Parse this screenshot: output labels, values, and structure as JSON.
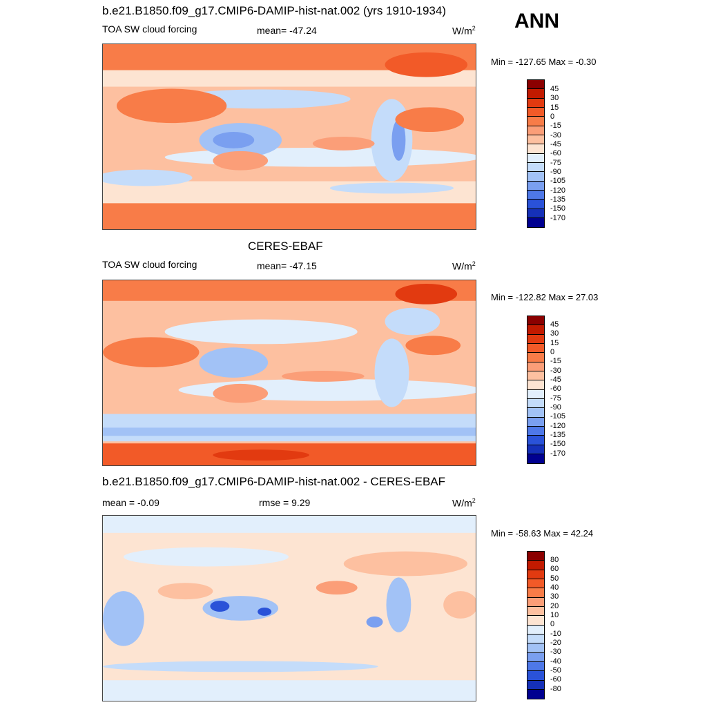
{
  "season": "ANN",
  "panels": [
    {
      "title": "b.e21.B1850.f09_g17.CMIP6-DAMIP-hist-nat.002 (yrs 1910-1934)",
      "left_label": "TOA SW cloud forcing",
      "center_label": "mean= -47.24",
      "units_base": "W/m",
      "units_sup": "2",
      "minmax": "Min = -127.65 Max =  -0.30"
    },
    {
      "title": "CERES-EBAF",
      "left_label": "TOA SW cloud forcing",
      "center_label": "mean= -47.15",
      "units_base": "W/m",
      "units_sup": "2",
      "minmax": "Min = -122.82 Max =  27.03"
    },
    {
      "title": "b.e21.B1850.f09_g17.CMIP6-DAMIP-hist-nat.002 - CERES-EBAF",
      "left_label": "mean =  -0.09",
      "center_label": "rmse =   9.29",
      "units_base": "W/m",
      "units_sup": "2",
      "minmax": "Min = -58.63 Max =  42.24"
    }
  ],
  "colorbars": {
    "field": {
      "labels": [
        "45",
        "30",
        "15",
        "0",
        "-15",
        "-30",
        "-45",
        "-60",
        "-75",
        "-90",
        "-105",
        "-120",
        "-135",
        "-150",
        "-170"
      ],
      "colors": [
        "#8b0000",
        "#c21a00",
        "#e23a10",
        "#f25a28",
        "#f87c48",
        "#fb9e78",
        "#fdc0a0",
        "#fde4d2",
        "#e2effc",
        "#c4dcfa",
        "#a2c2f6",
        "#7a9ff0",
        "#4e78e8",
        "#2a52d8",
        "#1530b8",
        "#000090"
      ]
    },
    "diff": {
      "labels": [
        "80",
        "60",
        "50",
        "40",
        "30",
        "20",
        "10",
        "0",
        "-10",
        "-20",
        "-30",
        "-40",
        "-50",
        "-60",
        "-80"
      ],
      "colors": [
        "#8b0000",
        "#c21a00",
        "#e23a10",
        "#f25a28",
        "#f87c48",
        "#fb9e78",
        "#fdc0a0",
        "#fde4d2",
        "#e2effc",
        "#c4dcfa",
        "#a2c2f6",
        "#7a9ff0",
        "#4e78e8",
        "#2a52d8",
        "#1530b8",
        "#000090"
      ]
    }
  }
}
